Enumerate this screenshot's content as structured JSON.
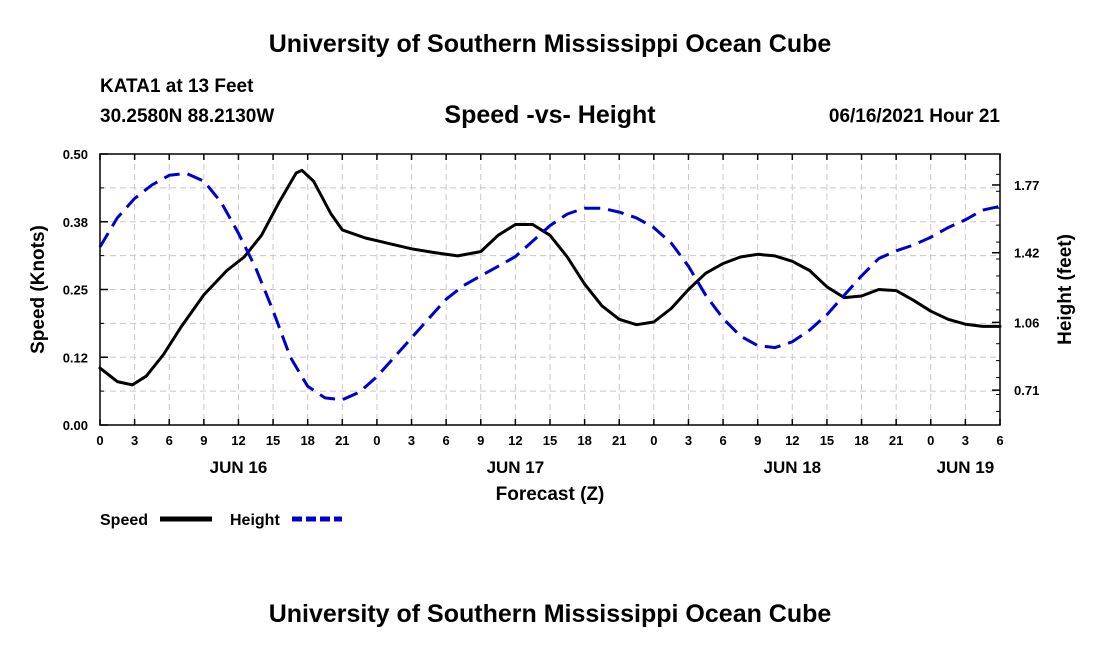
{
  "header": {
    "top_title": "University of Southern Mississippi Ocean Cube",
    "station": "KATA1 at 13 Feet",
    "coords": "30.2580N  88.2130W",
    "chart_title": "Speed -vs- Height",
    "datetime": "06/16/2021 Hour 21",
    "bottom_title": "University of Southern Mississippi Ocean Cube"
  },
  "colors": {
    "speed": "#000000",
    "height": "#0000cc",
    "grid": "#c8c8c8"
  },
  "chart_data": {
    "type": "line",
    "title": "Speed -vs- Height",
    "xlabel": "Forecast (Z)",
    "ylabel_left": "Speed (Knots)",
    "ylabel_right": "Height (feet)",
    "x_unit": "hours since Jun 16 00Z",
    "xlim": [
      0,
      78
    ],
    "ylim_left": [
      0,
      0.5
    ],
    "ylim_right": [
      0.53,
      1.93
    ],
    "x_ticks": [
      0,
      3,
      6,
      9,
      12,
      15,
      18,
      21,
      24,
      27,
      30,
      33,
      36,
      39,
      42,
      45,
      48,
      51,
      54,
      57,
      60,
      63,
      66,
      69,
      72,
      75,
      78
    ],
    "x_tick_labels": [
      "0",
      "3",
      "6",
      "9",
      "12",
      "15",
      "18",
      "21",
      "0",
      "3",
      "6",
      "9",
      "12",
      "15",
      "18",
      "21",
      "0",
      "3",
      "6",
      "9",
      "12",
      "15",
      "18",
      "21",
      "0",
      "3",
      "6"
    ],
    "day_labels": [
      {
        "x": 12,
        "label": "JUN 16"
      },
      {
        "x": 36,
        "label": "JUN 17"
      },
      {
        "x": 60,
        "label": "JUN 18"
      },
      {
        "x": 75,
        "label": "JUN 19"
      }
    ],
    "y_left_ticks": [
      0.0,
      0.125,
      0.25,
      0.375,
      0.5
    ],
    "y_left_tick_labels": [
      "0.00",
      "0.12",
      "0.25",
      "0.38",
      "0.50"
    ],
    "y_right_ticks": [
      0.71,
      1.06,
      1.42,
      1.77
    ],
    "y_right_tick_labels": [
      "0.71",
      "1.06",
      "1.42",
      "1.77"
    ],
    "series": [
      {
        "name": "Speed",
        "axis": "left",
        "style": "solid",
        "x": [
          0,
          1.5,
          2.8,
          4,
          5.5,
          7,
          9,
          11,
          12.5,
          14,
          15.5,
          17,
          17.5,
          18.5,
          20,
          21,
          23,
          25,
          27,
          29,
          31,
          33,
          34.5,
          36,
          37.5,
          39,
          40.5,
          42,
          43.5,
          45,
          46.5,
          48,
          49.5,
          51,
          52.5,
          54,
          55.5,
          57,
          58.5,
          60,
          61.5,
          63,
          64.5,
          66,
          67.5,
          69,
          70.5,
          72,
          73.5,
          75,
          76.5,
          78
        ],
        "values": [
          0.105,
          0.08,
          0.074,
          0.09,
          0.13,
          0.18,
          0.24,
          0.285,
          0.31,
          0.35,
          0.41,
          0.465,
          0.47,
          0.45,
          0.39,
          0.36,
          0.345,
          0.335,
          0.325,
          0.318,
          0.312,
          0.32,
          0.35,
          0.37,
          0.37,
          0.35,
          0.31,
          0.26,
          0.22,
          0.195,
          0.185,
          0.19,
          0.215,
          0.25,
          0.28,
          0.298,
          0.31,
          0.315,
          0.312,
          0.302,
          0.285,
          0.255,
          0.235,
          0.238,
          0.25,
          0.248,
          0.23,
          0.21,
          0.195,
          0.186,
          0.182,
          0.182
        ]
      },
      {
        "name": "Height",
        "axis": "right",
        "style": "dashed",
        "x": [
          0,
          1.5,
          3,
          4.5,
          6,
          7.5,
          9,
          10.5,
          12,
          13.5,
          15,
          16.5,
          18,
          19.5,
          21,
          22.5,
          24,
          25.5,
          27,
          28.5,
          30,
          31.5,
          33,
          34.5,
          36,
          37.5,
          39,
          40.5,
          42,
          43.5,
          45,
          46.5,
          48,
          49.5,
          51,
          52.5,
          54,
          55.5,
          57,
          58.5,
          60,
          61.5,
          63,
          64.5,
          66,
          67.5,
          69,
          70.5,
          72,
          73.5,
          75,
          76.5,
          78
        ],
        "values": [
          1.45,
          1.6,
          1.7,
          1.77,
          1.82,
          1.83,
          1.79,
          1.68,
          1.52,
          1.34,
          1.12,
          0.88,
          0.73,
          0.67,
          0.66,
          0.7,
          0.78,
          0.88,
          0.98,
          1.08,
          1.18,
          1.25,
          1.3,
          1.35,
          1.4,
          1.48,
          1.56,
          1.62,
          1.65,
          1.65,
          1.63,
          1.6,
          1.55,
          1.47,
          1.35,
          1.2,
          1.08,
          0.99,
          0.94,
          0.93,
          0.96,
          1.02,
          1.1,
          1.2,
          1.3,
          1.39,
          1.43,
          1.46,
          1.5,
          1.55,
          1.59,
          1.64,
          1.66
        ]
      }
    ],
    "legend": [
      {
        "name": "Speed",
        "label": "Speed"
      },
      {
        "name": "Height",
        "label": "Height"
      }
    ]
  }
}
